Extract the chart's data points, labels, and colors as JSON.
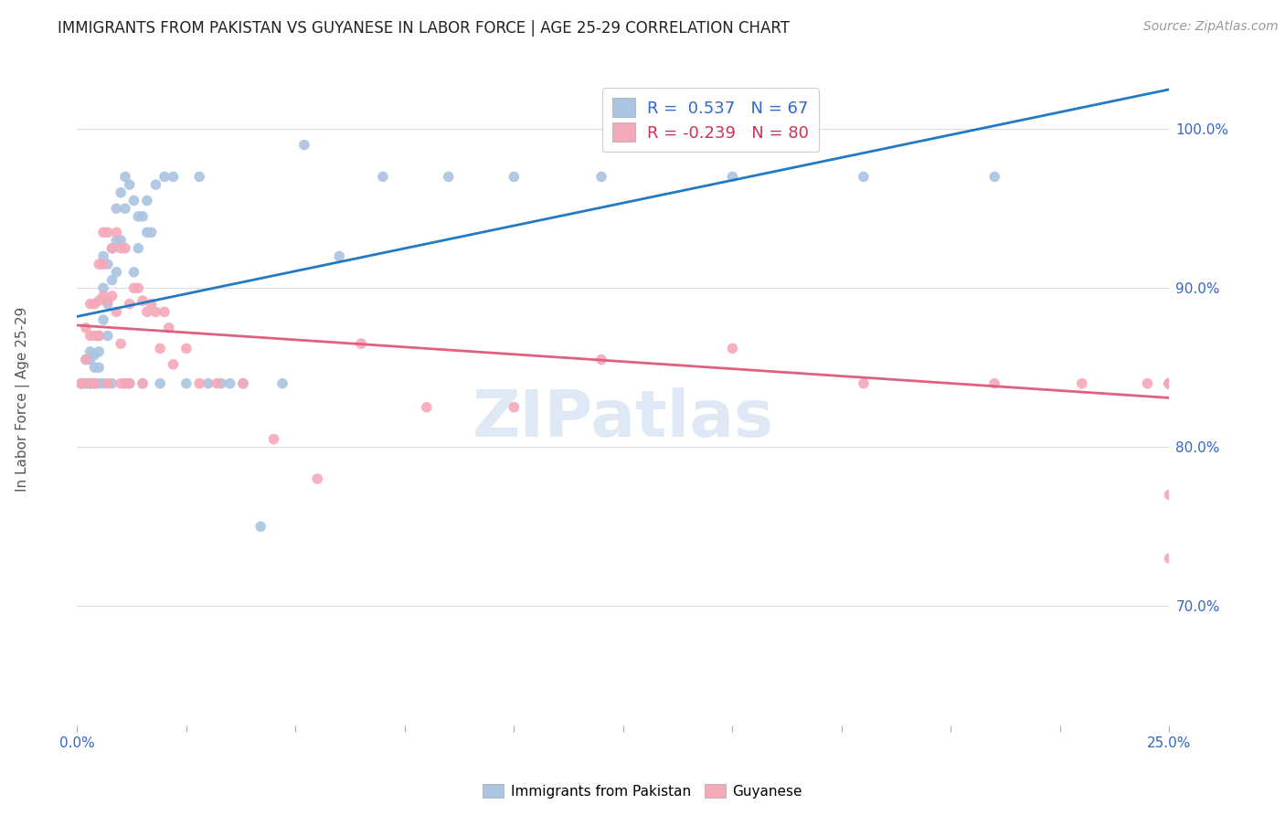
{
  "title": "IMMIGRANTS FROM PAKISTAN VS GUYANESE IN LABOR FORCE | AGE 25-29 CORRELATION CHART",
  "source": "Source: ZipAtlas.com",
  "ylabel": "In Labor Force | Age 25-29",
  "y_ticks": [
    0.7,
    0.8,
    0.9,
    1.0
  ],
  "y_tick_labels": [
    "70.0%",
    "80.0%",
    "90.0%",
    "100.0%"
  ],
  "x_range": [
    0.0,
    0.25
  ],
  "y_range": [
    0.625,
    1.035
  ],
  "legend_r_pakistan": " 0.537",
  "legend_n_pakistan": "67",
  "legend_r_guyanese": "-0.239",
  "legend_n_guyanese": "80",
  "pakistan_color": "#aac4e2",
  "guyanese_color": "#f5a8b8",
  "pakistan_line_color": "#2279c4",
  "guyanese_line_color": "#e06080",
  "legend_label_pakistan": "Immigrants from Pakistan",
  "legend_label_guyanese": "Guyanese",
  "pak_x": [
    0.001,
    0.001,
    0.002,
    0.002,
    0.002,
    0.003,
    0.003,
    0.003,
    0.003,
    0.004,
    0.004,
    0.004,
    0.004,
    0.005,
    0.005,
    0.005,
    0.005,
    0.006,
    0.006,
    0.006,
    0.006,
    0.007,
    0.007,
    0.007,
    0.008,
    0.008,
    0.008,
    0.009,
    0.009,
    0.009,
    0.01,
    0.01,
    0.011,
    0.011,
    0.011,
    0.012,
    0.012,
    0.013,
    0.013,
    0.014,
    0.014,
    0.015,
    0.015,
    0.016,
    0.016,
    0.017,
    0.018,
    0.019,
    0.02,
    0.022,
    0.025,
    0.028,
    0.03,
    0.033,
    0.035,
    0.038,
    0.042,
    0.047,
    0.052,
    0.06,
    0.07,
    0.085,
    0.1,
    0.12,
    0.15,
    0.18,
    0.21
  ],
  "pak_y": [
    0.84,
    0.84,
    0.855,
    0.84,
    0.84,
    0.86,
    0.855,
    0.84,
    0.84,
    0.858,
    0.85,
    0.84,
    0.84,
    0.87,
    0.86,
    0.85,
    0.84,
    0.92,
    0.9,
    0.88,
    0.84,
    0.915,
    0.89,
    0.87,
    0.925,
    0.905,
    0.84,
    0.95,
    0.93,
    0.91,
    0.96,
    0.93,
    0.97,
    0.95,
    0.84,
    0.965,
    0.84,
    0.955,
    0.91,
    0.945,
    0.925,
    0.945,
    0.84,
    0.955,
    0.935,
    0.935,
    0.965,
    0.84,
    0.97,
    0.97,
    0.84,
    0.97,
    0.84,
    0.84,
    0.84,
    0.84,
    0.75,
    0.84,
    0.99,
    0.92,
    0.97,
    0.97,
    0.97,
    0.97,
    0.97,
    0.97,
    0.97
  ],
  "guy_x": [
    0.001,
    0.001,
    0.002,
    0.002,
    0.003,
    0.003,
    0.003,
    0.004,
    0.004,
    0.004,
    0.005,
    0.005,
    0.005,
    0.006,
    0.006,
    0.006,
    0.007,
    0.007,
    0.007,
    0.008,
    0.008,
    0.009,
    0.009,
    0.01,
    0.01,
    0.01,
    0.011,
    0.011,
    0.012,
    0.012,
    0.013,
    0.014,
    0.015,
    0.015,
    0.016,
    0.017,
    0.018,
    0.019,
    0.02,
    0.021,
    0.022,
    0.025,
    0.028,
    0.032,
    0.038,
    0.045,
    0.055,
    0.065,
    0.08,
    0.1,
    0.12,
    0.15,
    0.18,
    0.21,
    0.23,
    0.245,
    0.25,
    0.25,
    0.25,
    0.25,
    0.25,
    0.25,
    0.25,
    0.25,
    0.25,
    0.25,
    0.25,
    0.25,
    0.25,
    0.25,
    0.25,
    0.25,
    0.25,
    0.25,
    0.25,
    0.25,
    0.25,
    0.25,
    0.25,
    0.25
  ],
  "guy_y": [
    0.84,
    0.84,
    0.875,
    0.855,
    0.89,
    0.87,
    0.84,
    0.89,
    0.87,
    0.84,
    0.915,
    0.892,
    0.87,
    0.935,
    0.915,
    0.895,
    0.935,
    0.892,
    0.84,
    0.925,
    0.895,
    0.935,
    0.885,
    0.925,
    0.865,
    0.84,
    0.925,
    0.84,
    0.89,
    0.84,
    0.9,
    0.9,
    0.892,
    0.84,
    0.885,
    0.89,
    0.885,
    0.862,
    0.885,
    0.875,
    0.852,
    0.862,
    0.84,
    0.84,
    0.84,
    0.805,
    0.78,
    0.865,
    0.825,
    0.825,
    0.855,
    0.862,
    0.84,
    0.84,
    0.84,
    0.84,
    0.84,
    0.84,
    0.84,
    0.84,
    0.84,
    0.84,
    0.84,
    0.84,
    0.84,
    0.84,
    0.84,
    0.84,
    0.84,
    0.84,
    0.84,
    0.84,
    0.84,
    0.84,
    0.84,
    0.84,
    0.84,
    0.84,
    0.77,
    0.73
  ]
}
